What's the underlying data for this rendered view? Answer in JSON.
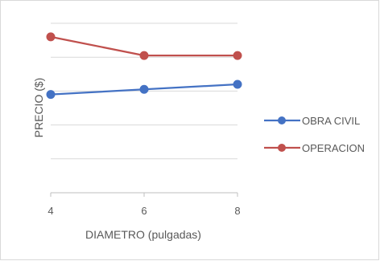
{
  "chart_data": {
    "type": "line",
    "title": "",
    "xlabel": "DIAMETRO (pulgadas)",
    "ylabel": "PRECIO ($)",
    "x": [
      4,
      6,
      8
    ],
    "xlim": [
      4,
      8
    ],
    "ylim": [
      0,
      100
    ],
    "y_gridlines": [
      0,
      20,
      40,
      60,
      80,
      100
    ],
    "y_tick_labels_shown": false,
    "grid": true,
    "legend_position": "right",
    "series": [
      {
        "name": "OBRA CIVIL",
        "values": [
          58,
          61,
          64
        ],
        "color": "#4472c4"
      },
      {
        "name": "OPERACION",
        "values": [
          92,
          81,
          81
        ],
        "color": "#c0504d"
      }
    ]
  }
}
